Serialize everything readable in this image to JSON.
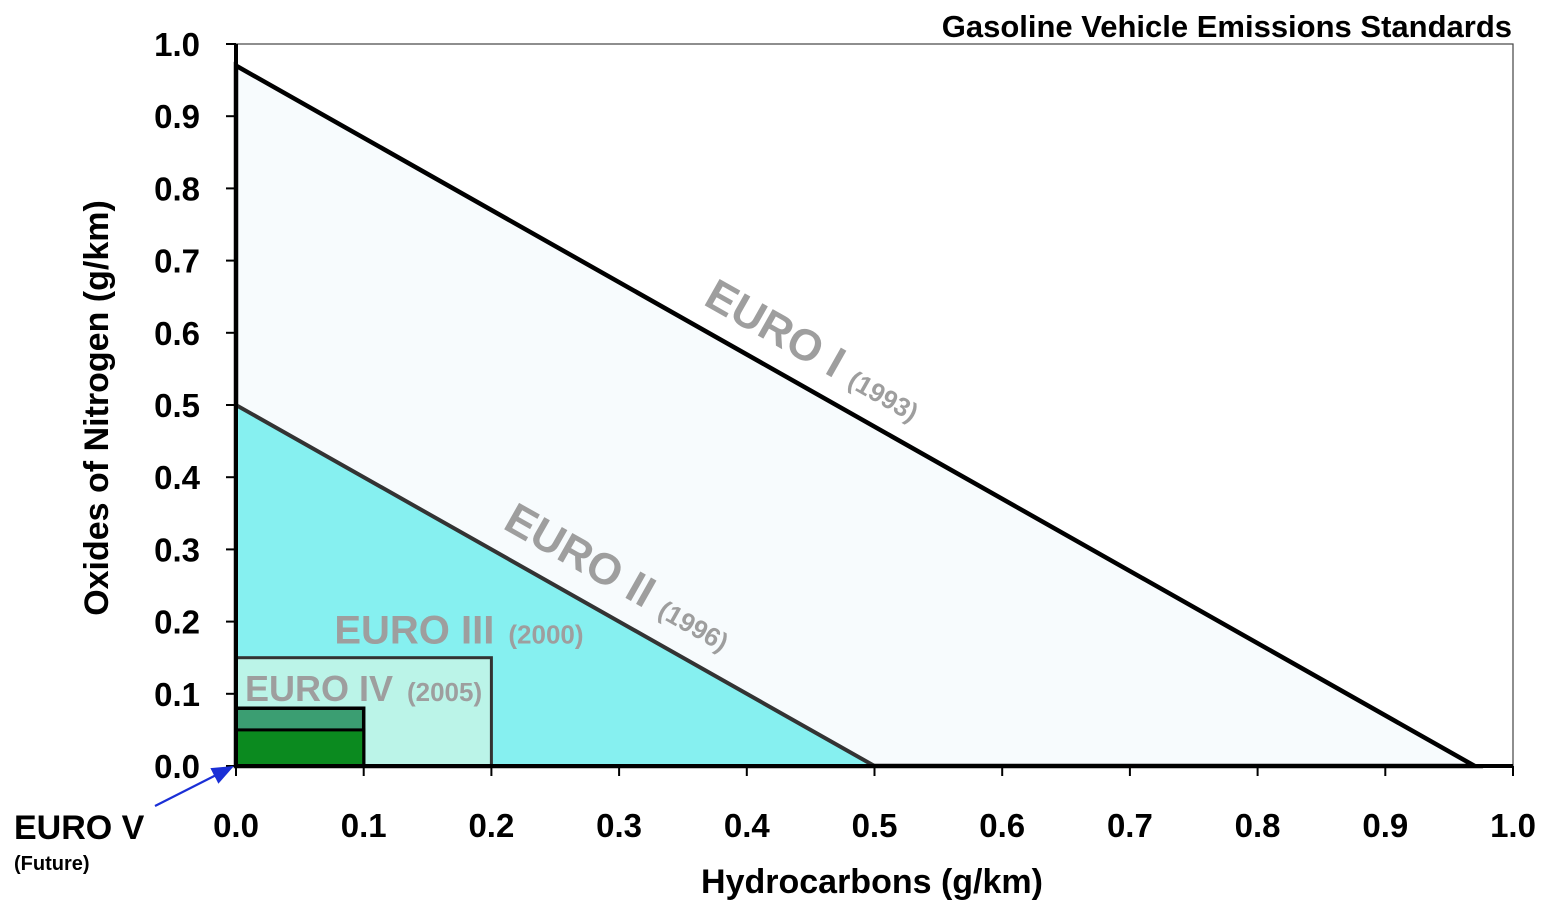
{
  "chart_data": {
    "type": "area",
    "title": "Gasoline Vehicle Emissions Standards",
    "xlabel": "Hydrocarbons (g/km)",
    "ylabel": "Oxides of Nitrogen (g/km)",
    "xlim": [
      0.0,
      1.0
    ],
    "ylim": [
      0.0,
      1.0
    ],
    "xticks": [
      "0.0",
      "0.1",
      "0.2",
      "0.3",
      "0.4",
      "0.5",
      "0.6",
      "0.7",
      "0.8",
      "0.9",
      "1.0"
    ],
    "yticks": [
      "0.0",
      "0.1",
      "0.2",
      "0.3",
      "0.4",
      "0.5",
      "0.6",
      "0.7",
      "0.8",
      "0.9",
      "1.0"
    ],
    "grid": false,
    "series": [
      {
        "name": "EURO I",
        "year": "(1993)",
        "shape": "triangle",
        "hc_nox_sum": 0.97,
        "color": "#f7fbfd"
      },
      {
        "name": "EURO II",
        "year": "(1996)",
        "shape": "triangle",
        "hc_nox_sum": 0.5,
        "color": "#86f0f0"
      },
      {
        "name": "EURO III",
        "year": "(2000)",
        "shape": "rectangle",
        "hc": 0.2,
        "nox": 0.15,
        "color": "#c4f4e6"
      },
      {
        "name": "EURO IV",
        "year": "(2005)",
        "shape": "rectangle",
        "hc": 0.1,
        "nox": 0.08,
        "color": "#3b9e72"
      },
      {
        "name": "EURO V",
        "year": "(Future)",
        "shape": "rectangle",
        "hc": 0.1,
        "nox": 0.05,
        "color": "#0b8a1f"
      }
    ]
  }
}
